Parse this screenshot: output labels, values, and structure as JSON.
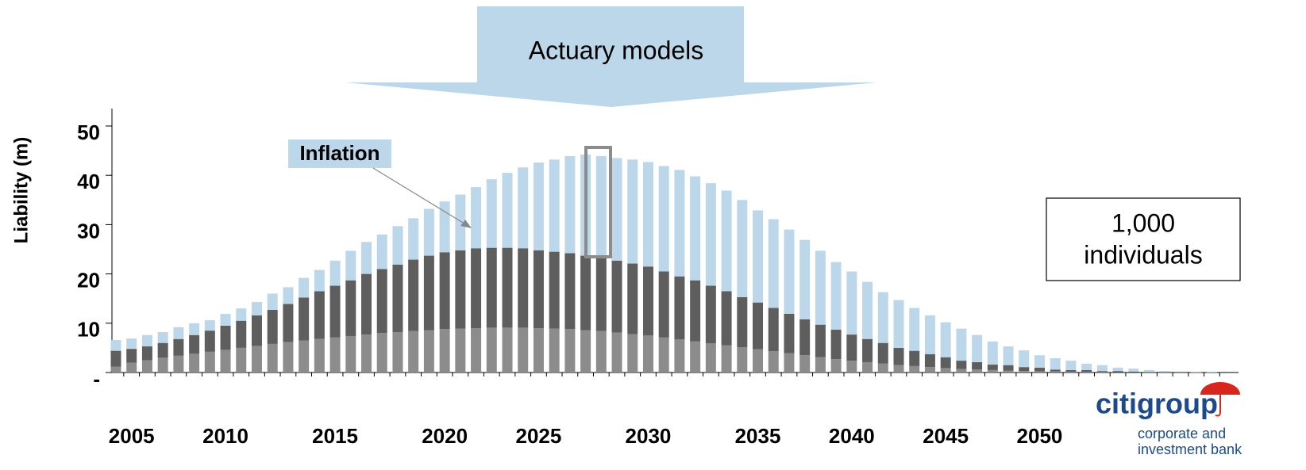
{
  "chart_data": {
    "type": "bar",
    "stacked": true,
    "y_label": "Liability (m)",
    "banner": "Actuary models",
    "annotation": "Inflation",
    "box_text": [
      "1,000",
      "individuals"
    ],
    "categories": [
      null,
      "2005",
      null,
      null,
      null,
      null,
      null,
      "2010",
      null,
      null,
      null,
      null,
      null,
      null,
      "2015",
      null,
      null,
      null,
      null,
      null,
      null,
      "2020",
      null,
      null,
      null,
      null,
      null,
      "2025",
      null,
      null,
      null,
      null,
      null,
      null,
      "2030",
      null,
      null,
      null,
      null,
      null,
      null,
      "2035",
      null,
      null,
      null,
      null,
      null,
      "2040",
      null,
      null,
      null,
      null,
      null,
      "2045",
      null,
      null,
      null,
      null,
      null,
      "2050",
      null,
      null,
      null,
      null,
      null,
      null,
      null,
      null,
      null,
      null,
      null
    ],
    "series": [
      {
        "color": "#8c8c8c",
        "values": [
          1.2,
          2,
          2.5,
          3,
          3.4,
          3.8,
          4.2,
          4.6,
          5,
          5.4,
          5.8,
          6.2,
          6.5,
          6.8,
          7.1,
          7.4,
          7.7,
          8,
          8.2,
          8.4,
          8.6,
          8.8,
          8.9,
          9,
          9.1,
          9.1,
          9.1,
          9,
          8.9,
          8.8,
          8.6,
          8.4,
          8.1,
          7.8,
          7.5,
          7.1,
          6.7,
          6.3,
          5.9,
          5.5,
          5.1,
          4.7,
          4.3,
          3.9,
          3.5,
          3.1,
          2.7,
          2.4,
          2.1,
          1.8,
          1.5,
          1.3,
          1.1,
          0.9,
          0.7,
          0.6,
          0.5,
          0.4,
          0.3,
          0.25,
          0.2,
          0.15,
          0.1,
          0.1,
          0.05,
          0.05,
          0,
          0,
          0,
          0,
          0
        ]
      },
      {
        "color": "#5e5e5e",
        "values": [
          3.2,
          2.8,
          2.8,
          3,
          3.4,
          3.8,
          4.3,
          4.9,
          5.5,
          6.2,
          6.9,
          7.7,
          8.7,
          9.7,
          10.5,
          11.3,
          12.3,
          13,
          13.7,
          14.5,
          15.1,
          15.6,
          15.9,
          16.2,
          16.2,
          16.2,
          16.1,
          15.8,
          15.6,
          15.4,
          15.1,
          14.8,
          14.6,
          14.3,
          14,
          13.4,
          12.8,
          12.4,
          11.7,
          11,
          10.2,
          9.5,
          8.8,
          8,
          7.3,
          6.6,
          6,
          5.3,
          4.7,
          4.2,
          3.5,
          3.1,
          2.6,
          2.2,
          1.7,
          1.5,
          1.1,
          1.1,
          0.8,
          0.75,
          0.4,
          0.35,
          0.4,
          0.2,
          0.25,
          0.15,
          0.1,
          0.1,
          0.1,
          0,
          0
        ]
      },
      {
        "color": "#bdd7ea",
        "values": [
          2.2,
          2.1,
          2.3,
          2.2,
          2.4,
          2.4,
          2.1,
          2.4,
          2.5,
          2.7,
          3.3,
          3.4,
          4,
          4.3,
          5.1,
          6,
          6.5,
          7,
          7.8,
          8.4,
          9.5,
          10.3,
          11.3,
          12.4,
          13.9,
          15.2,
          16.4,
          17.8,
          18.7,
          19.7,
          20.5,
          20.7,
          20.8,
          21.1,
          21.2,
          21.4,
          21.6,
          21.1,
          20.8,
          20.4,
          19.7,
          18.7,
          18,
          17.1,
          16.1,
          15,
          13.7,
          12.8,
          11.6,
          10.3,
          9.7,
          8.7,
          7.9,
          7.1,
          6.5,
          5.5,
          4.7,
          3.8,
          3.4,
          2.5,
          2.3,
          1.9,
          1.3,
          1.2,
          0.7,
          0.6,
          0.4,
          0.2,
          0.1,
          0.2,
          0.2
        ]
      }
    ],
    "ylim": [
      0,
      50
    ],
    "yticks": [
      {
        "value": 0,
        "label": "-"
      },
      10,
      20,
      30,
      40,
      50
    ]
  },
  "logo": {
    "name": "citigroup",
    "tagline": [
      "corporate and",
      "investment bank"
    ]
  }
}
